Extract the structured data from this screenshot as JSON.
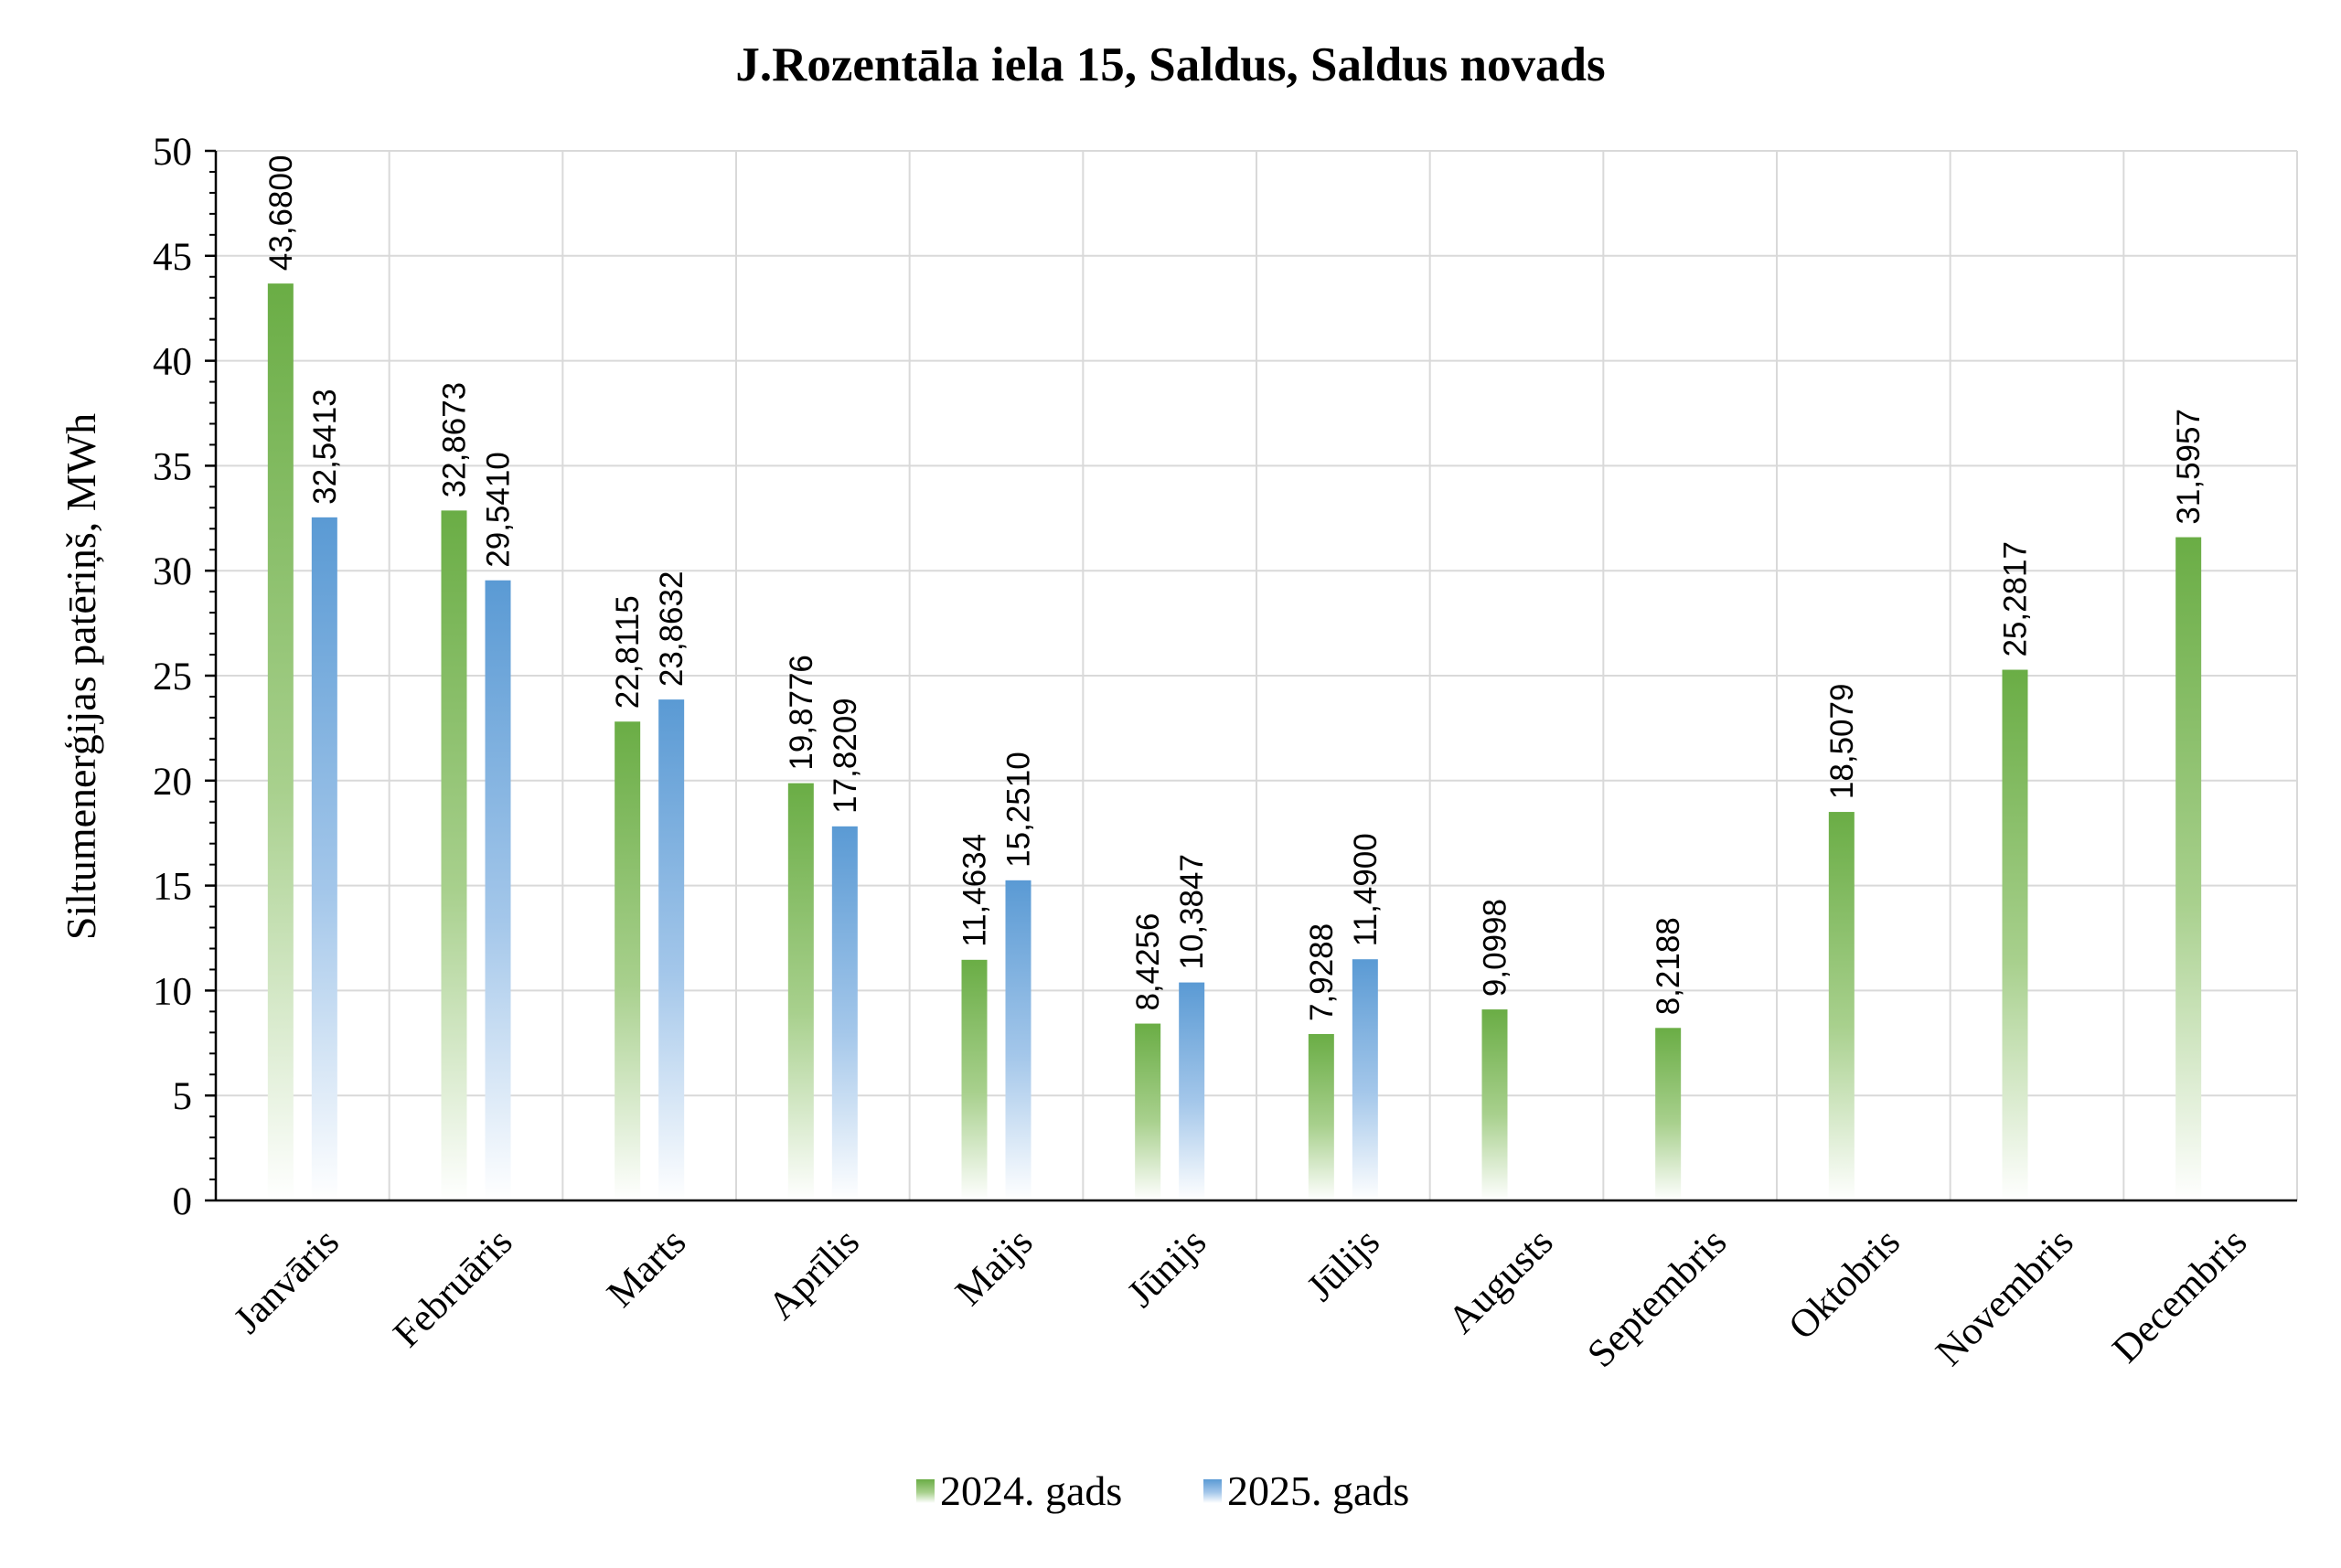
{
  "chart_data": {
    "type": "bar",
    "title": "J.Rozentāla iela 15, Saldus, Saldus novads",
    "xlabel": "",
    "ylabel": "Siltumenerģijas patēriņš, MWh",
    "ylim": [
      0,
      50
    ],
    "yticks": [
      0,
      5,
      10,
      15,
      20,
      25,
      30,
      35,
      40,
      45,
      50
    ],
    "grid": true,
    "legend_position": "bottom",
    "categories": [
      "Janvāris",
      "Februāris",
      "Marts",
      "Aprīlis",
      "Maijs",
      "Jūnijs",
      "Jūlijs",
      "Augusts",
      "Septembris",
      "Oktobris",
      "Novembris",
      "Decembris"
    ],
    "series": [
      {
        "name": "2024. gads",
        "color": "#70ad47",
        "values": [
          43.68,
          32.8673,
          22.8115,
          19.8776,
          11.4634,
          8.4256,
          7.9288,
          9.0998,
          8.2188,
          18.5079,
          25.2817,
          31.5957
        ],
        "labels": [
          "43,6800",
          "32,8673",
          "22,8115",
          "19,8776",
          "11,4634",
          "8,4256",
          "7,9288",
          "9,0998",
          "8,2188",
          "18,5079",
          "25,2817",
          "31,5957"
        ]
      },
      {
        "name": "2025. gads",
        "color": "#5b9bd5",
        "values": [
          32.5413,
          29.541,
          23.8632,
          17.8209,
          15.251,
          10.3847,
          11.49,
          null,
          null,
          null,
          null,
          null
        ],
        "labels": [
          "32,5413",
          "29,5410",
          "23,8632",
          "17,8209",
          "15,2510",
          "10,3847",
          "11,4900",
          null,
          null,
          null,
          null,
          null
        ]
      }
    ]
  }
}
